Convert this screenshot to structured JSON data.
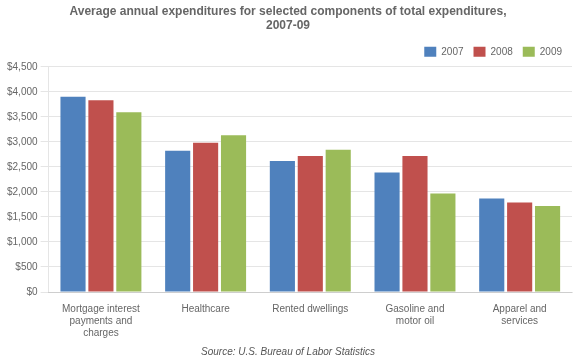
{
  "chart_data": {
    "type": "bar",
    "title": "Average annual expenditures for selected components of total expenditures,\n2007-09",
    "categories": [
      "Mortgage interest\npayments and\ncharges",
      "Healthcare",
      "Rented dwellings",
      "Gasoline and\nmotor oil",
      "Apparel and\nservices"
    ],
    "series": [
      {
        "name": "2007",
        "color": "#4F81BD",
        "values": [
          3900,
          2820,
          2620,
          2390,
          1870
        ]
      },
      {
        "name": "2008",
        "color": "#C0504D",
        "values": [
          3830,
          2980,
          2720,
          2720,
          1790
        ]
      },
      {
        "name": "2009",
        "color": "#9BBB59",
        "values": [
          3590,
          3130,
          2840,
          1970,
          1720
        ]
      }
    ],
    "ylim": [
      0,
      4500
    ],
    "yticks": [
      {
        "value": 0,
        "label": "$0"
      },
      {
        "value": 500,
        "label": "$500"
      },
      {
        "value": 1000,
        "label": "$1,000"
      },
      {
        "value": 1500,
        "label": "$1,500"
      },
      {
        "value": 2000,
        "label": "$2,000"
      },
      {
        "value": 2500,
        "label": "$2,500"
      },
      {
        "value": 3000,
        "label": "$3,000"
      },
      {
        "value": 3500,
        "label": "$3,500"
      },
      {
        "value": 4000,
        "label": "$4,000"
      },
      {
        "value": 4500,
        "label": "$4,500"
      }
    ],
    "grid": true,
    "legend": "upper right",
    "annotation": "Source: U.S. Bureau of Labor Statistics"
  }
}
